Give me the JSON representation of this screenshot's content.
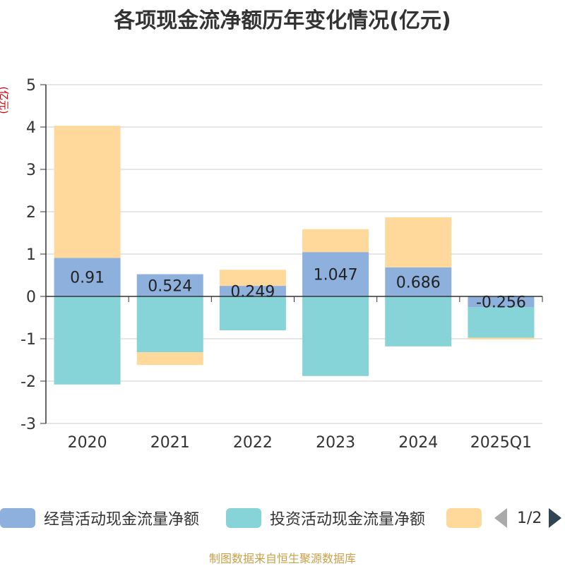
{
  "title": "各项现金流净额历年变化情况(亿元)",
  "unit_label": "(亿元)",
  "source": "制图数据来自恒生聚源数据库",
  "legend": {
    "items": [
      {
        "label": "经营活动现金流量净额",
        "color": "#8eb0dc"
      },
      {
        "label": "投资活动现金流量净额",
        "color": "#87d4d8"
      },
      {
        "label": "",
        "color": "#fed99b"
      }
    ],
    "page": "1/2"
  },
  "chart_data": {
    "type": "bar",
    "stacked": true,
    "categories": [
      "2020",
      "2021",
      "2022",
      "2023",
      "2024",
      "2025Q1"
    ],
    "series": [
      {
        "name": "经营活动现金流量净额",
        "color": "#8eb0dc",
        "values": [
          0.91,
          0.524,
          0.249,
          1.047,
          0.686,
          -0.256
        ],
        "labels": [
          "0.91",
          "0.524",
          "0.249",
          "1.047",
          "0.686",
          "-0.256"
        ]
      },
      {
        "name": "投资活动现金流量净额",
        "color": "#87d4d8",
        "values": [
          -2.08,
          -1.32,
          -0.8,
          -1.88,
          -1.18,
          -0.72
        ]
      },
      {
        "color": "#fed99b",
        "values": [
          3.12,
          -0.3,
          0.38,
          0.54,
          1.18,
          -0.04
        ]
      }
    ],
    "ylim": [
      -3,
      5
    ],
    "yticks": [
      5,
      4,
      3,
      2,
      1,
      0,
      -1,
      -2,
      -3
    ],
    "grid": true,
    "legend_position": "bottom"
  }
}
